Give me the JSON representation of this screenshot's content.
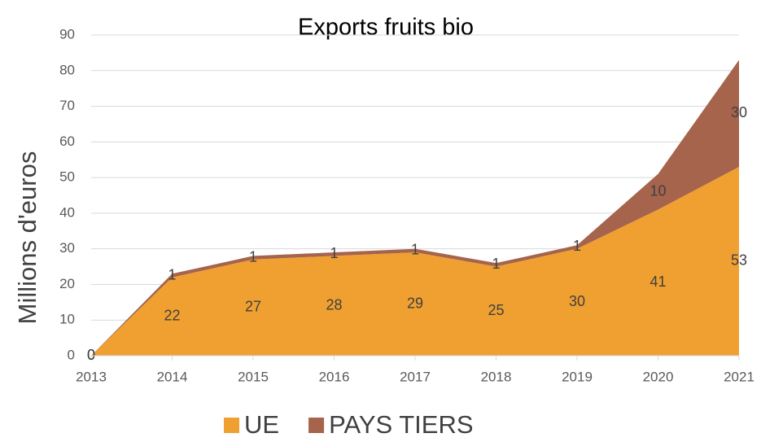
{
  "chart_data": {
    "type": "stacked_area",
    "title": "Exports fruits bio",
    "y_label": "Millions d'euros",
    "categories": [
      "2013",
      "2014",
      "2015",
      "2016",
      "2017",
      "2018",
      "2019",
      "2020",
      "2021"
    ],
    "series": [
      {
        "name": "UE",
        "color": "#f0a030",
        "values": [
          0,
          22,
          27,
          28,
          29,
          25,
          30,
          41,
          53
        ]
      },
      {
        "name": "PAYS TIERS",
        "color": "#a5644b",
        "values": [
          0,
          1,
          1,
          1,
          1,
          1,
          1,
          10,
          30
        ]
      }
    ],
    "ylim": [
      0,
      90
    ],
    "yticks": [
      0,
      10,
      20,
      30,
      40,
      50,
      60,
      70,
      80,
      90
    ],
    "grid": true,
    "legend": "bottom"
  }
}
